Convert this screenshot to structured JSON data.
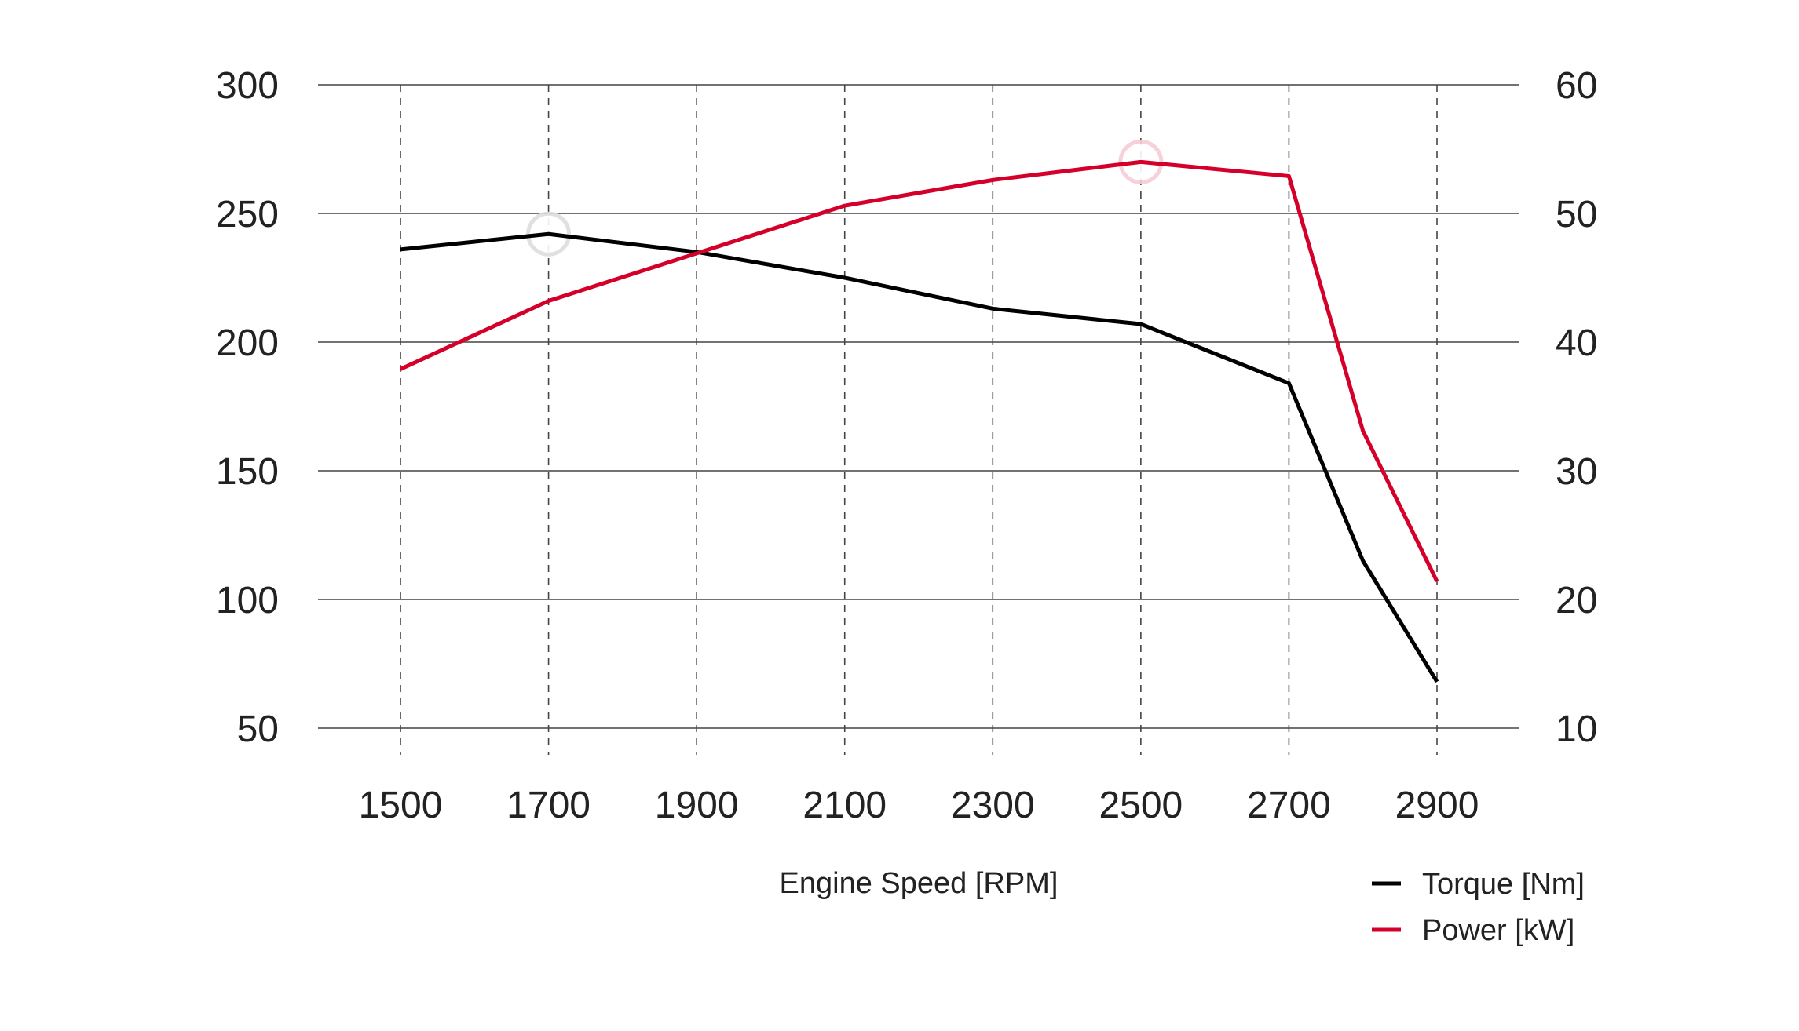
{
  "chart_data": {
    "type": "line",
    "title": "",
    "xlabel": "Engine Speed [RPM]",
    "ylabel_left": "",
    "ylabel_right": "",
    "x_ticks": [
      1500,
      1700,
      1900,
      2100,
      2300,
      2500,
      2700,
      2900
    ],
    "x_tick_labels": [
      "1500",
      "1700",
      "1900",
      "2100",
      "2300",
      "2500",
      "2700",
      "2900"
    ],
    "xlim": [
      1390,
      3010
    ],
    "y_left_ticks": [
      300,
      250,
      200,
      150,
      100,
      50
    ],
    "y_left_tick_labels": [
      "300",
      "250",
      "200",
      "150",
      "100",
      "50"
    ],
    "ylim_left": [
      50,
      300
    ],
    "y_right_ticks": [
      60,
      50,
      40,
      30,
      20,
      10
    ],
    "y_right_tick_labels": [
      "60",
      "50",
      "40",
      "30",
      "20",
      "10"
    ],
    "ylim_right": [
      10,
      60
    ],
    "grid": {
      "horizontal": "solid",
      "vertical": "dashed"
    },
    "legend_position": "bottom-right",
    "series": [
      {
        "name": "Torque [Nm]",
        "axis": "left",
        "color": "#000000",
        "x": [
          1500,
          1700,
          1900,
          2100,
          2300,
          2500,
          2700,
          2800,
          2900
        ],
        "values": [
          236,
          242,
          235,
          225,
          213,
          207,
          184,
          115,
          68
        ],
        "highlight_x": 1700
      },
      {
        "name": "Power  [kW]",
        "axis": "right",
        "color": "#d5002a",
        "x": [
          1500,
          1700,
          1900,
          2100,
          2300,
          2500,
          2700,
          2800,
          2900
        ],
        "values": [
          37.9,
          43.2,
          46.9,
          50.6,
          52.6,
          54.0,
          52.9,
          33.1,
          21.4
        ],
        "highlight_x": 2500
      }
    ]
  }
}
